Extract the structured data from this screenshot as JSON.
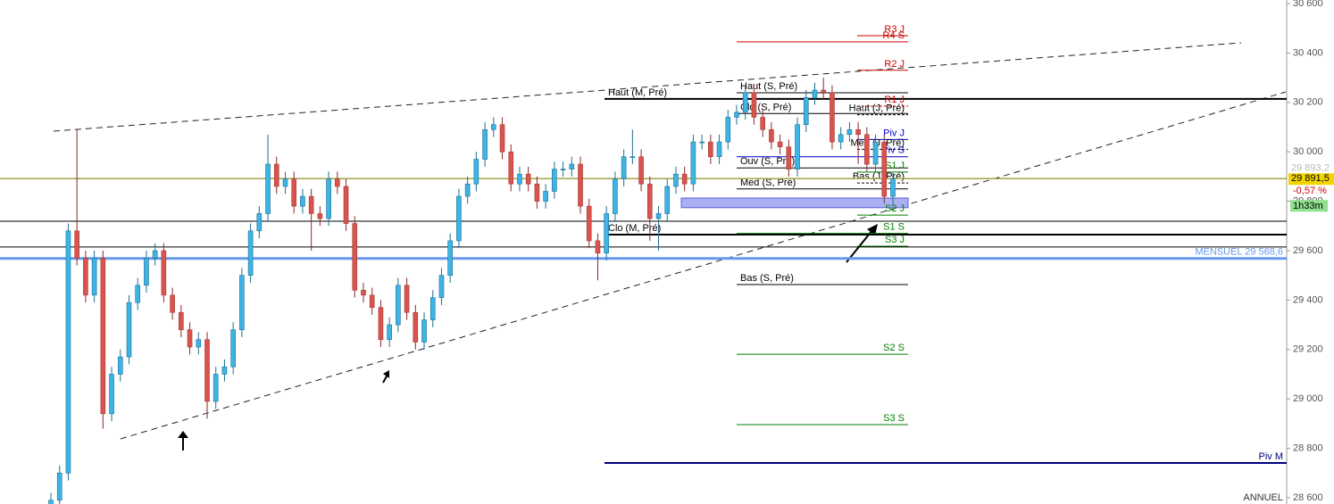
{
  "chart_data": {
    "type": "candlestick",
    "open": [
      28560,
      28590,
      28700,
      29680,
      29570,
      29420,
      29570,
      28940,
      29100,
      29170,
      29390,
      29460,
      29570,
      29600,
      29420,
      29350,
      29280,
      29210,
      29240,
      28990,
      29100,
      29130,
      29280,
      29500,
      29680,
      29750,
      29950,
      29860,
      29890,
      29780,
      29820,
      29750,
      29730,
      29890,
      29860,
      29710,
      29440,
      29420,
      29370,
      29240,
      29300,
      29460,
      29350,
      29230,
      29320,
      29410,
      29500,
      29640,
      29820,
      29870,
      29970,
      30090,
      30110,
      30000,
      29870,
      29910,
      29870,
      29800,
      29840,
      29930,
      29930,
      29950,
      29780,
      29640,
      29590,
      29750,
      29890,
      29980,
      29980,
      29870,
      29730,
      29750,
      29860,
      29910,
      29870,
      30040,
      30040,
      29980,
      30040,
      30140,
      30160,
      30240,
      30140,
      30090,
      30040,
      30020,
      29930,
      30110,
      30220,
      30250,
      30240,
      30040,
      30070,
      30090,
      30070,
      29950,
      30040,
      29820
    ],
    "high": [
      28620,
      28730,
      29710,
      30090,
      29600,
      29600,
      29600,
      29130,
      29200,
      29420,
      29490,
      29600,
      29630,
      29630,
      29450,
      29380,
      29310,
      29270,
      29270,
      29130,
      29160,
      29310,
      29530,
      29710,
      29780,
      30070,
      29980,
      29920,
      29920,
      29850,
      29850,
      29780,
      29920,
      29920,
      29890,
      29740,
      29470,
      29450,
      29400,
      29330,
      29490,
      29490,
      29380,
      29350,
      29440,
      29530,
      29670,
      29850,
      29900,
      30000,
      30120,
      30140,
      30140,
      30030,
      29940,
      29940,
      29900,
      29870,
      29960,
      29960,
      29980,
      29980,
      29810,
      29670,
      29780,
      29920,
      30010,
      30090,
      30010,
      29900,
      29780,
      29890,
      29940,
      29940,
      30070,
      30070,
      30070,
      30070,
      30170,
      30190,
      30270,
      30270,
      30170,
      30120,
      30070,
      30050,
      30140,
      30250,
      30280,
      30300,
      30270,
      30100,
      30120,
      30120,
      30100,
      30070,
      30070,
      29920
    ],
    "low": [
      28530,
      28560,
      28670,
      29540,
      29390,
      29390,
      28880,
      28910,
      29070,
      29140,
      29360,
      29430,
      29540,
      29390,
      29320,
      29250,
      29180,
      29180,
      28920,
      28960,
      29070,
      29100,
      29250,
      29470,
      29650,
      29720,
      29830,
      29830,
      29750,
      29750,
      29600,
      29700,
      29700,
      29830,
      29680,
      29410,
      29390,
      29340,
      29210,
      29210,
      29270,
      29320,
      29200,
      29200,
      29290,
      29380,
      29470,
      29610,
      29790,
      29840,
      29940,
      30060,
      29970,
      29840,
      29840,
      29840,
      29770,
      29770,
      29810,
      29900,
      29900,
      29750,
      29610,
      29480,
      29560,
      29720,
      29860,
      29950,
      29840,
      29640,
      29600,
      29720,
      29830,
      29840,
      29840,
      30010,
      29950,
      29950,
      30010,
      30110,
      30130,
      30110,
      30060,
      30010,
      29990,
      29900,
      29900,
      30080,
      30190,
      30210,
      30010,
      30010,
      30040,
      29950,
      29920,
      29920,
      29790,
      29780
    ],
    "close": [
      28590,
      28700,
      29680,
      29570,
      29420,
      29570,
      28940,
      29100,
      29170,
      29390,
      29460,
      29570,
      29600,
      29420,
      29350,
      29280,
      29210,
      29240,
      28990,
      29100,
      29130,
      29280,
      29500,
      29680,
      29750,
      29950,
      29860,
      29890,
      29780,
      29820,
      29750,
      29730,
      29890,
      29860,
      29710,
      29440,
      29420,
      29370,
      29240,
      29300,
      29460,
      29350,
      29230,
      29320,
      29410,
      29500,
      29640,
      29820,
      29870,
      29970,
      30090,
      30110,
      30000,
      29870,
      29910,
      29870,
      29800,
      29840,
      29930,
      29930,
      29950,
      29780,
      29640,
      29590,
      29750,
      29890,
      29980,
      29980,
      29870,
      29730,
      29750,
      29860,
      29910,
      29870,
      30040,
      30040,
      29980,
      30040,
      30140,
      30160,
      30240,
      30140,
      30090,
      30040,
      30020,
      29930,
      30110,
      30220,
      30250,
      30240,
      30040,
      30070,
      30090,
      30070,
      29950,
      30040,
      29820,
      29890
    ],
    "colors": {
      "up": "#3db4e6",
      "down": "#d9534f"
    },
    "ylim": [
      28600,
      30600
    ],
    "yticks": [
      {
        "value": 28600,
        "label": "28 600"
      },
      {
        "value": 28800,
        "label": "28 800"
      },
      {
        "value": 29000,
        "label": "29 000"
      },
      {
        "value": 29200,
        "label": "29 200"
      },
      {
        "value": 29400,
        "label": "29 400"
      },
      {
        "value": 29600,
        "label": "29 600"
      },
      {
        "value": 29800,
        "label": "29 800"
      },
      {
        "value": 30000,
        "label": "30 000"
      },
      {
        "value": 30200,
        "label": "30 200"
      },
      {
        "value": 30400,
        "label": "30 400"
      },
      {
        "value": 30600,
        "label": "30 600"
      }
    ],
    "levels": [
      {
        "label": "R3 J",
        "value": 30470,
        "color": "#cc0000"
      },
      {
        "label": "R4 S",
        "value": 30445,
        "color": "#cc0000"
      },
      {
        "label": "R2 J",
        "value": 30330,
        "color": "#cc0000"
      },
      {
        "label": "Haut (S, Pré)",
        "value": 30239,
        "color": "#000000"
      },
      {
        "label": "Haut (M, Pré)",
        "value": 30214,
        "color": "#000000"
      },
      {
        "label": "R1 J",
        "value": 30185,
        "color": "#cc0000",
        "dashed": true
      },
      {
        "label": "Clo (S, Pré)",
        "value": 30155,
        "color": "#000000"
      },
      {
        "label": "Haut (J, Pré)",
        "value": 30150,
        "color": "#000000",
        "dashed": true
      },
      {
        "label": "Piv J",
        "value": 30050,
        "color": "#0000cc"
      },
      {
        "label": "Med (J, Pré)",
        "value": 30010,
        "color": "#000000",
        "dashed": true
      },
      {
        "label": "Piv S",
        "value": 29980,
        "color": "#0000cc"
      },
      {
        "label": "Ouv (S, Pré)",
        "value": 29935,
        "color": "#000000"
      },
      {
        "label": "S1 J",
        "value": 29918,
        "color": "#008000"
      },
      {
        "label": "Bas (J, Pré)",
        "value": 29874,
        "color": "#000000",
        "dashed": true
      },
      {
        "label": "Med (S, Pré)",
        "value": 29850,
        "color": "#000000"
      },
      {
        "label": "S2 J",
        "value": 29744,
        "color": "#008000"
      },
      {
        "label": null,
        "value": 29719,
        "color": "#000000"
      },
      {
        "label": "S1 S",
        "value": 29670,
        "color": "#008000"
      },
      {
        "label": "Clo (M, Pré)",
        "value": 29665,
        "color": "#000000"
      },
      {
        "label": "S3 J",
        "value": 29618,
        "color": "#008000"
      },
      {
        "label": null,
        "value": 29615,
        "color": "#000000"
      },
      {
        "label": "MENSUEL 29 568,6",
        "value": 29568.6,
        "color": "#6699ee"
      },
      {
        "label": "Bas (S, Pré)",
        "value": 29463,
        "color": "#000000"
      },
      {
        "label": "S2 S",
        "value": 29181,
        "color": "#008000"
      },
      {
        "label": "S3 S",
        "value": 28896,
        "color": "#008000"
      },
      {
        "label": "Piv M",
        "value": 28741,
        "color": "#000080"
      }
    ],
    "zone": {
      "low": 29774,
      "high": 29813,
      "color": "#aab0f2"
    },
    "last": {
      "value": 29891.5,
      "label": "29 891,5",
      "color": "#f3d400",
      "line_color": "#a3a34a"
    },
    "prev": {
      "value": 29893.2,
      "label": "29 893,2"
    },
    "change": "-0,57 %",
    "timer": "1h33m",
    "footer": "ANNUEL"
  }
}
